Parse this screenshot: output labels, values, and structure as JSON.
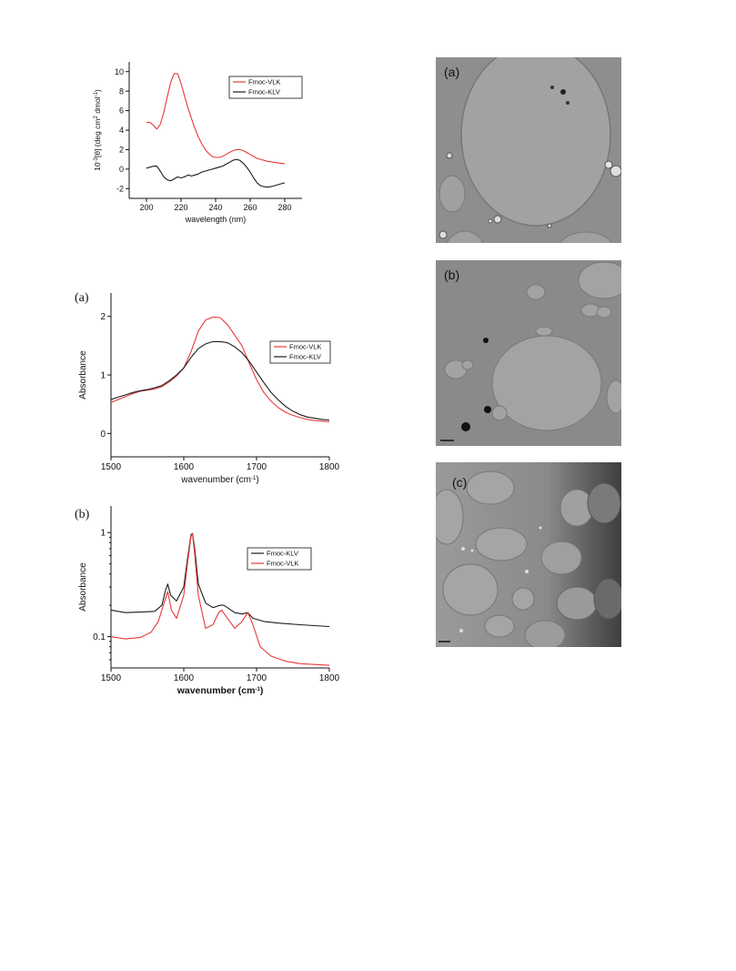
{
  "charts": {
    "cd": {
      "type": "line",
      "ylabel_html": "10<tspan baseline-shift='super' font-size='6'>-3</tspan>[θ] (deg cm<tspan baseline-shift='super' font-size='6'>2</tspan> dmol<tspan baseline-shift='super' font-size='6'>-1</tspan>)",
      "ylabel": "10-3[θ] (deg cm2 dmol-1)",
      "xlabel": "wavelength (nm)",
      "xlim": [
        190,
        290
      ],
      "ylim": [
        -3,
        11
      ],
      "xticks": [
        200,
        220,
        240,
        260,
        280
      ],
      "yticks": [
        -2,
        0,
        2,
        4,
        6,
        8,
        10
      ],
      "legend": "top-right",
      "series": [
        {
          "name": "Fmoc-VLK",
          "color": "#e8383a",
          "x": [
            200,
            202,
            204,
            206,
            208,
            210,
            212,
            214,
            216,
            218,
            220,
            222,
            224,
            226,
            228,
            230,
            232,
            234,
            236,
            238,
            240,
            242,
            244,
            246,
            248,
            250,
            252,
            254,
            256,
            258,
            260,
            262,
            264,
            266,
            268,
            270,
            272,
            274,
            276,
            278,
            280
          ],
          "y": [
            4.8,
            4.8,
            4.5,
            4.1,
            4.6,
            5.8,
            7.4,
            8.9,
            9.8,
            9.8,
            8.8,
            7.5,
            6.3,
            5.2,
            4.2,
            3.3,
            2.6,
            2.0,
            1.6,
            1.3,
            1.2,
            1.2,
            1.3,
            1.5,
            1.7,
            1.9,
            2.0,
            2.0,
            1.9,
            1.7,
            1.5,
            1.3,
            1.1,
            1.0,
            0.9,
            0.8,
            0.75,
            0.7,
            0.65,
            0.6,
            0.55
          ]
        },
        {
          "name": "Fmoc-KLV",
          "color": "#1a1a1a",
          "x": [
            200,
            202,
            204,
            206,
            208,
            210,
            212,
            214,
            216,
            218,
            220,
            222,
            224,
            226,
            228,
            230,
            232,
            234,
            236,
            238,
            240,
            242,
            244,
            246,
            248,
            250,
            252,
            254,
            256,
            258,
            260,
            262,
            264,
            266,
            268,
            270,
            272,
            274,
            276,
            278,
            280
          ],
          "y": [
            0.1,
            0.2,
            0.3,
            0.3,
            -0.2,
            -0.8,
            -1.1,
            -1.2,
            -1.0,
            -0.8,
            -0.9,
            -0.8,
            -0.6,
            -0.7,
            -0.6,
            -0.5,
            -0.3,
            -0.2,
            -0.1,
            0.0,
            0.1,
            0.2,
            0.3,
            0.5,
            0.7,
            0.9,
            1.0,
            0.9,
            0.6,
            0.2,
            -0.3,
            -0.9,
            -1.4,
            -1.7,
            -1.8,
            -1.85,
            -1.8,
            -1.7,
            -1.6,
            -1.5,
            -1.4
          ]
        }
      ]
    },
    "ftir_a": {
      "type": "line",
      "panel": "(a)",
      "ylabel": "Absorbance",
      "xlabel": "wavenumber (cm-1)",
      "xlabel_html": "wavenumber (cm<tspan baseline-shift='super' font-size='6'>-1</tspan>)",
      "xlim": [
        1500,
        1800
      ],
      "ylim": [
        -0.4,
        2.4
      ],
      "xticks": [
        1500,
        1600,
        1700,
        1800
      ],
      "yticks": [
        0,
        1,
        2
      ],
      "legend": "right",
      "series": [
        {
          "name": "Fmoc-VLK",
          "color": "#e8383a",
          "x": [
            1500,
            1510,
            1520,
            1530,
            1540,
            1550,
            1560,
            1570,
            1580,
            1590,
            1600,
            1610,
            1620,
            1630,
            1640,
            1650,
            1660,
            1670,
            1680,
            1690,
            1700,
            1710,
            1720,
            1730,
            1740,
            1750,
            1760,
            1770,
            1780,
            1790,
            1800
          ],
          "y": [
            0.53,
            0.58,
            0.63,
            0.68,
            0.72,
            0.74,
            0.76,
            0.8,
            0.88,
            0.98,
            1.12,
            1.4,
            1.75,
            1.94,
            1.99,
            1.98,
            1.86,
            1.68,
            1.5,
            1.2,
            0.92,
            0.7,
            0.55,
            0.44,
            0.36,
            0.31,
            0.27,
            0.24,
            0.22,
            0.21,
            0.2
          ]
        },
        {
          "name": "Fmoc-KLV",
          "color": "#1a1a1a",
          "x": [
            1500,
            1510,
            1520,
            1530,
            1540,
            1550,
            1560,
            1570,
            1580,
            1590,
            1600,
            1610,
            1620,
            1630,
            1640,
            1650,
            1660,
            1670,
            1680,
            1690,
            1700,
            1710,
            1720,
            1730,
            1740,
            1750,
            1760,
            1770,
            1780,
            1790,
            1800
          ],
          "y": [
            0.58,
            0.62,
            0.66,
            0.7,
            0.73,
            0.75,
            0.78,
            0.82,
            0.9,
            1.0,
            1.12,
            1.3,
            1.45,
            1.53,
            1.57,
            1.57,
            1.55,
            1.48,
            1.38,
            1.23,
            1.05,
            0.87,
            0.7,
            0.57,
            0.46,
            0.38,
            0.32,
            0.28,
            0.26,
            0.24,
            0.23
          ]
        }
      ]
    },
    "ftir_b": {
      "type": "line",
      "panel": "(b)",
      "ylabel": "Absorbance",
      "xlabel": "wavenumber (cm-1)",
      "xlabel_html": "wavenumber (cm<tspan baseline-shift='super' font-size='6'>-1</tspan>)",
      "xlim": [
        1500,
        1800
      ],
      "ylim": [
        0.05,
        1.8
      ],
      "yscale": "log",
      "xticks": [
        1500,
        1600,
        1700,
        1800
      ],
      "yticks": [
        0.1,
        1
      ],
      "ytick_labels": [
        "0.1",
        "1"
      ],
      "legend": "right",
      "series": [
        {
          "name": "Fmoc-KLV",
          "color": "#1a1a1a",
          "x": [
            1500,
            1520,
            1540,
            1560,
            1570,
            1575,
            1578,
            1582,
            1590,
            1600,
            1605,
            1610,
            1612,
            1615,
            1620,
            1630,
            1640,
            1650,
            1655,
            1660,
            1670,
            1680,
            1688,
            1695,
            1710,
            1730,
            1760,
            1800
          ],
          "y": [
            0.18,
            0.17,
            0.172,
            0.175,
            0.2,
            0.28,
            0.32,
            0.25,
            0.22,
            0.3,
            0.55,
            0.95,
            0.98,
            0.7,
            0.32,
            0.21,
            0.19,
            0.2,
            0.2,
            0.19,
            0.17,
            0.165,
            0.17,
            0.15,
            0.14,
            0.135,
            0.13,
            0.125
          ]
        },
        {
          "name": "Fmoc-VLK",
          "color": "#e8383a",
          "x": [
            1500,
            1520,
            1540,
            1555,
            1565,
            1572,
            1578,
            1583,
            1590,
            1600,
            1605,
            1610,
            1612,
            1615,
            1620,
            1630,
            1640,
            1648,
            1652,
            1660,
            1670,
            1680,
            1688,
            1695,
            1705,
            1720,
            1740,
            1760,
            1800
          ],
          "y": [
            0.1,
            0.095,
            0.098,
            0.11,
            0.14,
            0.2,
            0.27,
            0.18,
            0.15,
            0.25,
            0.5,
            0.92,
            0.97,
            0.62,
            0.25,
            0.12,
            0.13,
            0.17,
            0.18,
            0.15,
            0.12,
            0.14,
            0.17,
            0.13,
            0.08,
            0.065,
            0.058,
            0.055,
            0.053
          ]
        }
      ]
    }
  },
  "micrographs": [
    {
      "label": "(a)"
    },
    {
      "label": "(b)"
    },
    {
      "label": "(c)"
    }
  ]
}
